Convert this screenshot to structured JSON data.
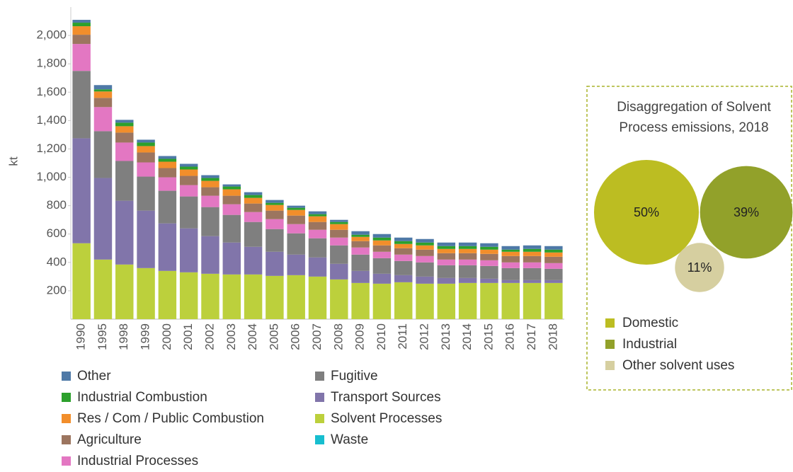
{
  "chart_data": [
    {
      "type": "stacked-bar",
      "y_label": "kt",
      "categories": [
        "1990",
        "1995",
        "1998",
        "1999",
        "2000",
        "2001",
        "2002",
        "2003",
        "2004",
        "2005",
        "2006",
        "2007",
        "2008",
        "2009",
        "2010",
        "2011",
        "2012",
        "2013",
        "2014",
        "2015",
        "2016",
        "2017",
        "2018"
      ],
      "ylim": [
        0,
        2200
      ],
      "yticks": [
        200,
        400,
        600,
        800,
        {
          "value": 1000,
          "label": "1,000"
        },
        {
          "value": 1200,
          "label": "1,200"
        },
        {
          "value": 1400,
          "label": "1,400"
        },
        {
          "value": 1600,
          "label": "1,600"
        },
        {
          "value": 1800,
          "label": "1,800"
        },
        {
          "value": 2000,
          "label": "2,000"
        }
      ],
      "series": [
        {
          "name": "Other",
          "color": "#4e79a7",
          "values": [
            20,
            30,
            20,
            20,
            20,
            20,
            20,
            15,
            20,
            20,
            15,
            20,
            15,
            25,
            25,
            25,
            25,
            25,
            25,
            25,
            25,
            25,
            25
          ]
        },
        {
          "name": "Industrial Combustion",
          "color": "#2ca02c",
          "values": [
            25,
            15,
            25,
            25,
            20,
            20,
            20,
            20,
            20,
            15,
            15,
            15,
            15,
            15,
            20,
            20,
            20,
            20,
            20,
            20,
            15,
            20,
            20
          ]
        },
        {
          "name": "Res / Com / Public Combustion",
          "color": "#f28e2b",
          "values": [
            60,
            45,
            45,
            45,
            45,
            45,
            45,
            45,
            40,
            40,
            40,
            40,
            40,
            30,
            35,
            30,
            30,
            30,
            30,
            30,
            30,
            30,
            30
          ]
        },
        {
          "name": "Agriculture",
          "color": "#9c755f",
          "values": [
            65,
            65,
            70,
            70,
            65,
            65,
            60,
            60,
            60,
            60,
            60,
            55,
            55,
            45,
            45,
            45,
            45,
            45,
            45,
            45,
            45,
            45,
            45
          ]
        },
        {
          "name": "Industrial Processes",
          "color": "#e377c2",
          "values": [
            190,
            170,
            130,
            100,
            95,
            80,
            80,
            75,
            70,
            70,
            65,
            60,
            55,
            50,
            45,
            45,
            45,
            40,
            40,
            40,
            40,
            40,
            40
          ]
        },
        {
          "name": "Fugitive",
          "color": "#7f7f7f",
          "values": [
            475,
            330,
            280,
            240,
            230,
            225,
            205,
            195,
            175,
            160,
            150,
            135,
            130,
            115,
            110,
            100,
            100,
            90,
            90,
            90,
            85,
            85,
            80
          ]
        },
        {
          "name": "Transport Sources",
          "color": "#8175aa",
          "values": [
            740,
            575,
            450,
            405,
            335,
            310,
            265,
            225,
            195,
            170,
            145,
            135,
            110,
            85,
            70,
            50,
            50,
            40,
            35,
            30,
            20,
            20,
            20
          ]
        },
        {
          "name": "Solvent Processes",
          "color": "#bcd03c",
          "values": [
            535,
            420,
            385,
            360,
            340,
            330,
            320,
            315,
            315,
            305,
            310,
            300,
            280,
            255,
            250,
            260,
            250,
            250,
            255,
            255,
            255,
            255,
            255
          ]
        },
        {
          "name": "Waste",
          "color": "#17becf",
          "values": [
            0,
            0,
            0,
            0,
            0,
            0,
            0,
            0,
            0,
            0,
            0,
            0,
            0,
            0,
            0,
            0,
            0,
            0,
            0,
            0,
            0,
            0,
            0
          ]
        }
      ]
    },
    {
      "type": "bubble",
      "title": "Disaggregation of Solvent Process emissions, 2018",
      "categories": [
        "Domestic",
        "Industrial",
        "Other solvent uses"
      ],
      "values": [
        50,
        39,
        11
      ],
      "value_labels": [
        "50%",
        "39%",
        "11%"
      ],
      "colors": [
        "#bcbd22",
        "#92a12a",
        "#d6cfa0"
      ]
    }
  ]
}
